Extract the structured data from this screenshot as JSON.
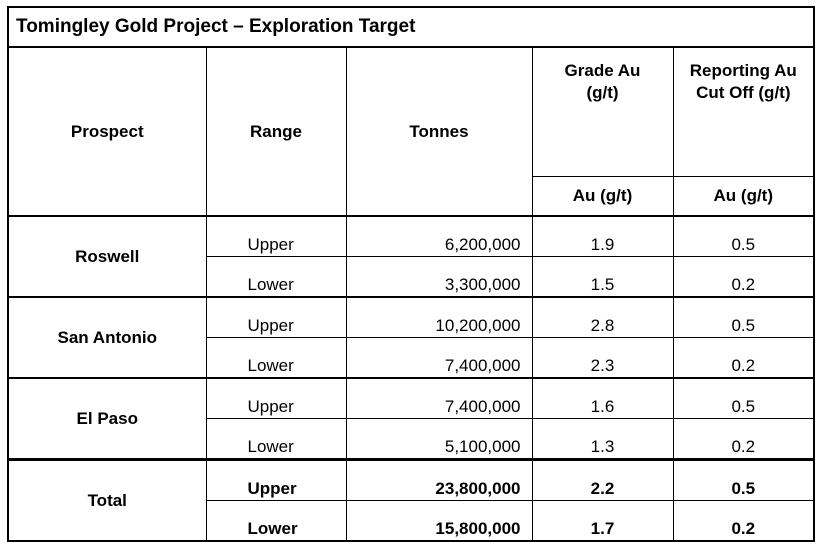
{
  "title": "Tomingley Gold Project – Exploration Target",
  "headers": {
    "prospect": "Prospect",
    "range": "Range",
    "tonnes": "Tonnes",
    "grade": "Grade Au (g/t)",
    "cutoff": "Reporting Au Cut Off (g/t)",
    "grade_unit": "Au (g/t)",
    "cutoff_unit": "Au (g/t)"
  },
  "rows": [
    {
      "prospect": "Roswell",
      "upper": {
        "range": "Upper",
        "tonnes": "6,200,000",
        "grade": "1.9",
        "cutoff": "0.5"
      },
      "lower": {
        "range": "Lower",
        "tonnes": "3,300,000",
        "grade": "1.5",
        "cutoff": "0.2"
      }
    },
    {
      "prospect": "San Antonio",
      "upper": {
        "range": "Upper",
        "tonnes": "10,200,000",
        "grade": "2.8",
        "cutoff": "0.5"
      },
      "lower": {
        "range": "Lower",
        "tonnes": "7,400,000",
        "grade": "2.3",
        "cutoff": "0.2"
      }
    },
    {
      "prospect": "El Paso",
      "upper": {
        "range": "Upper",
        "tonnes": "7,400,000",
        "grade": "1.6",
        "cutoff": "0.5"
      },
      "lower": {
        "range": "Lower",
        "tonnes": "5,100,000",
        "grade": "1.3",
        "cutoff": "0.2"
      }
    },
    {
      "prospect": "Total",
      "upper": {
        "range": "Upper",
        "tonnes": "23,800,000",
        "grade": "2.2",
        "cutoff": "0.5"
      },
      "lower": {
        "range": "Lower",
        "tonnes": "15,800,000",
        "grade": "1.7",
        "cutoff": "0.2"
      }
    }
  ]
}
